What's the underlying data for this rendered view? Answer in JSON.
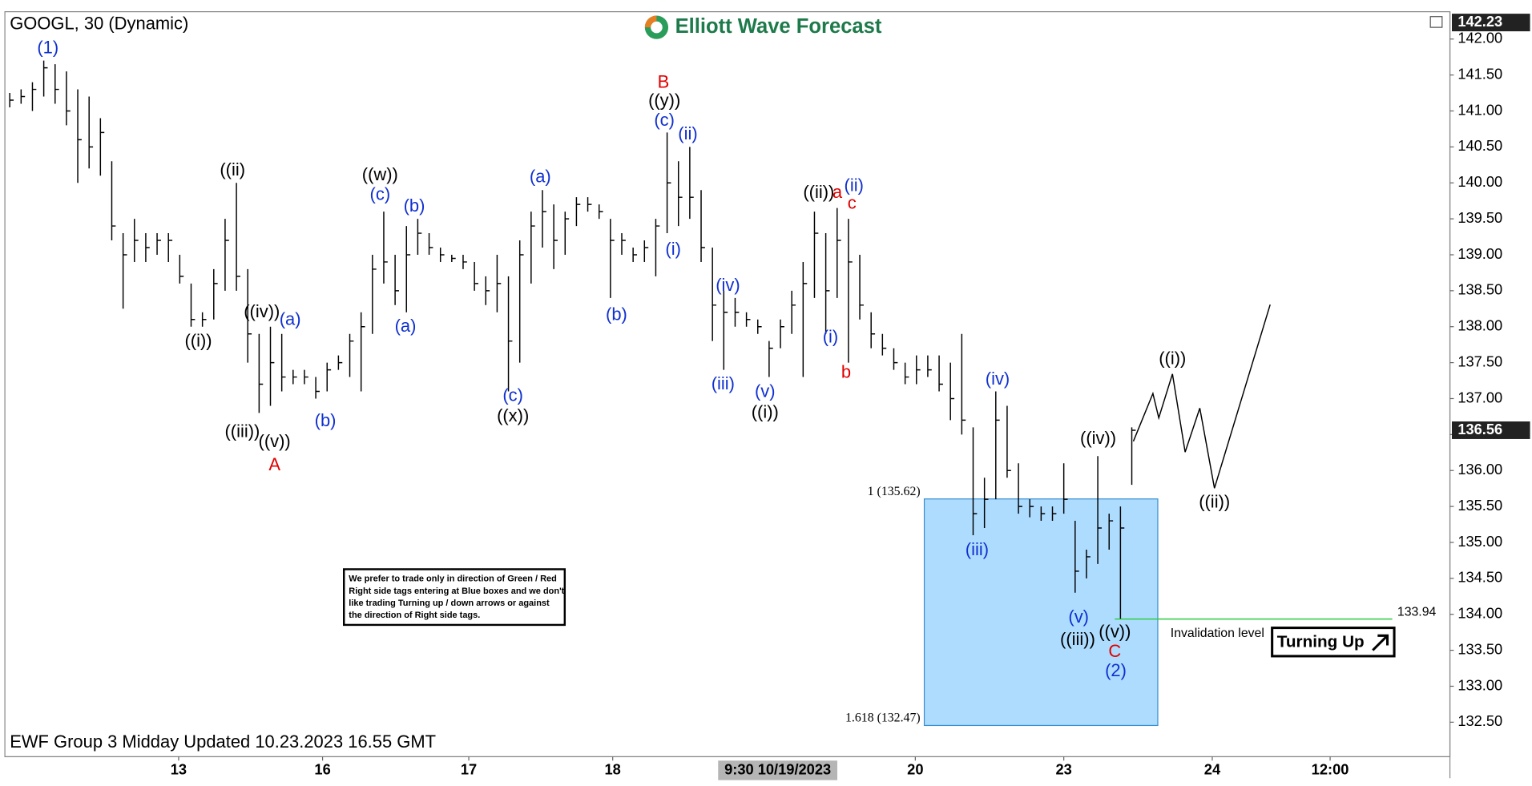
{
  "chart_data": {
    "type": "ohlc",
    "title": "GOOGL, 30 (Dynamic)",
    "logo": "Elliott Wave Forecast",
    "footer": "EWF Group 3 Midday Updated 10.23.2023 16.55 GMT",
    "crosshair_label": "9:30 10/19/2023",
    "color": "#000000",
    "xlim": [
      -0.43,
      127.07
    ],
    "xticks": [
      {
        "value": 14.9,
        "label": "13"
      },
      {
        "value": 27.6,
        "label": "16"
      },
      {
        "value": 40.5,
        "label": "17"
      },
      {
        "value": 53.2,
        "label": "18"
      },
      {
        "value": 79.9,
        "label": "20"
      },
      {
        "value": 93.0,
        "label": "23"
      },
      {
        "value": 106.1,
        "label": "24"
      },
      {
        "value": 116.5,
        "label": "12:00"
      }
    ],
    "ylim": [
      132.02,
      142.38
    ],
    "yticks": [
      {
        "value": 132.5,
        "label": "132.50"
      },
      {
        "value": 133,
        "label": "133.00"
      },
      {
        "value": 133.5,
        "label": "133.50"
      },
      {
        "value": 134,
        "label": "134.00"
      },
      {
        "value": 134.5,
        "label": "134.50"
      },
      {
        "value": 135,
        "label": "135.00"
      },
      {
        "value": 135.5,
        "label": "135.50"
      },
      {
        "value": 136,
        "label": "136.00"
      },
      {
        "value": 136.5,
        "label": "136.50"
      },
      {
        "value": 137,
        "label": "137.00"
      },
      {
        "value": 137.5,
        "label": "137.50"
      },
      {
        "value": 138,
        "label": "138.00"
      },
      {
        "value": 138.5,
        "label": "138.50"
      },
      {
        "value": 139,
        "label": "139.00"
      },
      {
        "value": 139.5,
        "label": "139.50"
      },
      {
        "value": 140,
        "label": "140.00"
      },
      {
        "value": 140.5,
        "label": "140.50"
      },
      {
        "value": 141,
        "label": "141.00"
      },
      {
        "value": 141.5,
        "label": "141.50"
      },
      {
        "value": 142,
        "label": "142.00"
      }
    ],
    "x": [
      0,
      1,
      2,
      3,
      4,
      5,
      6,
      7,
      8,
      9,
      10,
      11,
      12,
      13,
      14,
      15,
      16,
      17,
      18,
      19,
      20,
      21,
      22,
      23,
      24,
      25,
      26,
      27,
      28,
      29,
      30,
      31,
      32,
      33,
      34,
      35,
      36,
      37,
      38,
      39,
      40,
      41,
      42,
      43,
      44,
      45,
      46,
      47,
      48,
      49,
      50,
      51,
      52,
      53,
      54,
      55,
      56,
      57,
      58,
      59,
      60,
      61,
      62,
      63,
      64,
      65,
      66,
      67,
      68,
      69,
      70,
      71,
      72,
      73,
      74,
      75,
      76,
      77,
      78,
      79,
      80,
      81,
      82,
      83,
      84,
      85,
      86,
      87,
      88,
      89,
      90,
      91,
      92,
      93,
      94,
      95,
      96,
      97,
      98,
      99
    ],
    "high": [
      141.25,
      141.3,
      141.4,
      141.7,
      141.65,
      141.55,
      141.3,
      141.2,
      140.9,
      140.3,
      139.3,
      139.5,
      139.3,
      139.3,
      139.3,
      139.0,
      138.6,
      138.2,
      138.8,
      139.5,
      140.0,
      138.8,
      137.9,
      138.0,
      137.9,
      137.4,
      137.4,
      137.3,
      137.5,
      137.6,
      137.9,
      138.2,
      139.0,
      139.6,
      139.0,
      139.4,
      139.5,
      139.3,
      139.1,
      139.0,
      139.0,
      138.9,
      138.7,
      139.0,
      138.7,
      139.2,
      139.6,
      139.9,
      139.7,
      139.6,
      139.8,
      139.8,
      139.7,
      139.5,
      139.3,
      139.1,
      139.2,
      139.5,
      140.7,
      140.3,
      140.5,
      139.9,
      139.1,
      138.5,
      138.4,
      138.2,
      138.1,
      137.8,
      138.1,
      138.5,
      138.9,
      139.6,
      139.3,
      139.65,
      139.5,
      139.0,
      138.2,
      137.9,
      137.7,
      137.5,
      137.6,
      137.6,
      137.6,
      137.5,
      137.9,
      136.6,
      135.9,
      137.1,
      136.9,
      136.1,
      135.6,
      135.5,
      135.5,
      136.1,
      135.3,
      134.9,
      136.2,
      135.4,
      135.5,
      136.6
    ],
    "low": [
      141.05,
      141.1,
      141.0,
      141.2,
      141.1,
      140.8,
      140.0,
      140.2,
      140.1,
      139.2,
      138.25,
      138.9,
      138.9,
      139.0,
      138.9,
      138.6,
      138.0,
      138.0,
      138.1,
      138.5,
      138.5,
      137.5,
      136.8,
      136.9,
      137.1,
      137.2,
      137.2,
      137.0,
      137.1,
      137.4,
      137.3,
      137.1,
      137.9,
      138.6,
      138.3,
      138.2,
      139.0,
      139.0,
      138.9,
      138.9,
      138.8,
      138.5,
      138.3,
      138.2,
      137.1,
      137.5,
      138.6,
      139.1,
      138.8,
      139.0,
      139.4,
      139.6,
      139.5,
      138.4,
      139.0,
      138.9,
      138.9,
      138.7,
      139.3,
      139.4,
      139.5,
      138.9,
      137.8,
      137.4,
      138.0,
      138.0,
      137.9,
      137.3,
      137.7,
      137.9,
      137.3,
      138.4,
      137.9,
      138.4,
      137.5,
      138.1,
      137.7,
      137.6,
      137.4,
      137.2,
      137.2,
      137.3,
      137.1,
      136.7,
      136.5,
      135.1,
      135.2,
      135.6,
      135.9,
      135.4,
      135.35,
      135.3,
      135.3,
      135.4,
      134.3,
      134.5,
      134.7,
      134.9,
      133.94,
      135.8
    ],
    "close": [
      141.15,
      141.2,
      141.3,
      141.6,
      141.3,
      141.0,
      140.6,
      140.5,
      140.7,
      139.4,
      139.0,
      139.2,
      139.1,
      139.2,
      139.2,
      138.7,
      138.1,
      138.1,
      138.6,
      139.2,
      138.7,
      137.9,
      137.2,
      137.5,
      137.3,
      137.3,
      137.3,
      137.1,
      137.4,
      137.5,
      137.8,
      138.0,
      138.8,
      138.9,
      138.5,
      139.0,
      139.3,
      139.1,
      139.0,
      138.95,
      138.9,
      138.6,
      138.5,
      138.6,
      137.8,
      139.0,
      139.4,
      139.6,
      139.2,
      139.5,
      139.7,
      139.7,
      139.6,
      139.2,
      139.2,
      139.0,
      139.1,
      139.4,
      140.0,
      139.8,
      139.8,
      139.1,
      138.3,
      138.2,
      138.2,
      138.1,
      138.0,
      137.7,
      138.0,
      138.3,
      138.6,
      139.3,
      138.5,
      139.2,
      138.9,
      138.3,
      137.9,
      137.7,
      137.5,
      137.3,
      137.4,
      137.4,
      137.2,
      137.0,
      136.7,
      135.4,
      135.6,
      136.7,
      136.0,
      135.5,
      135.5,
      135.4,
      135.4,
      135.6,
      134.6,
      134.8,
      135.2,
      135.3,
      135.2,
      136.56
    ],
    "price_markers": [
      {
        "value": 142.23,
        "label": "142.23"
      },
      {
        "value": 136.56,
        "label": "136.56"
      }
    ],
    "wave_labels": [
      "(1)",
      "((ii)",
      "((i))",
      "((iv))",
      "(a)",
      "((iii))",
      "((v))",
      "A",
      "(b)",
      "((w))",
      "(c)",
      "(b)",
      "(a)",
      "(a)",
      "(c)",
      "((x))",
      "(b)",
      "B",
      "((y))",
      "(c)",
      "(ii)",
      "(i)",
      "(iv)",
      "(iii)",
      "(v)",
      "((i))",
      "((ii))",
      "a",
      "(ii)",
      "c",
      "(i)",
      "b",
      "(iv)",
      "(iii)",
      "((iv))",
      "(v)",
      "((iii))",
      "((v))",
      "C",
      "(2)",
      "((i))",
      "((ii))"
    ],
    "box_labels": [
      "1 (135.62)",
      "1.618 (132.47)"
    ],
    "invalidation_value": "133.94",
    "invalidation_text": "Invalidation level",
    "signal": "Turning Up",
    "note": [
      "We prefer to trade only in direction of Green / Red",
      "Right side tags entering at Blue boxes and we don't",
      "like trading Turning up / down arrows or against",
      "the direction of Right side tags."
    ]
  }
}
